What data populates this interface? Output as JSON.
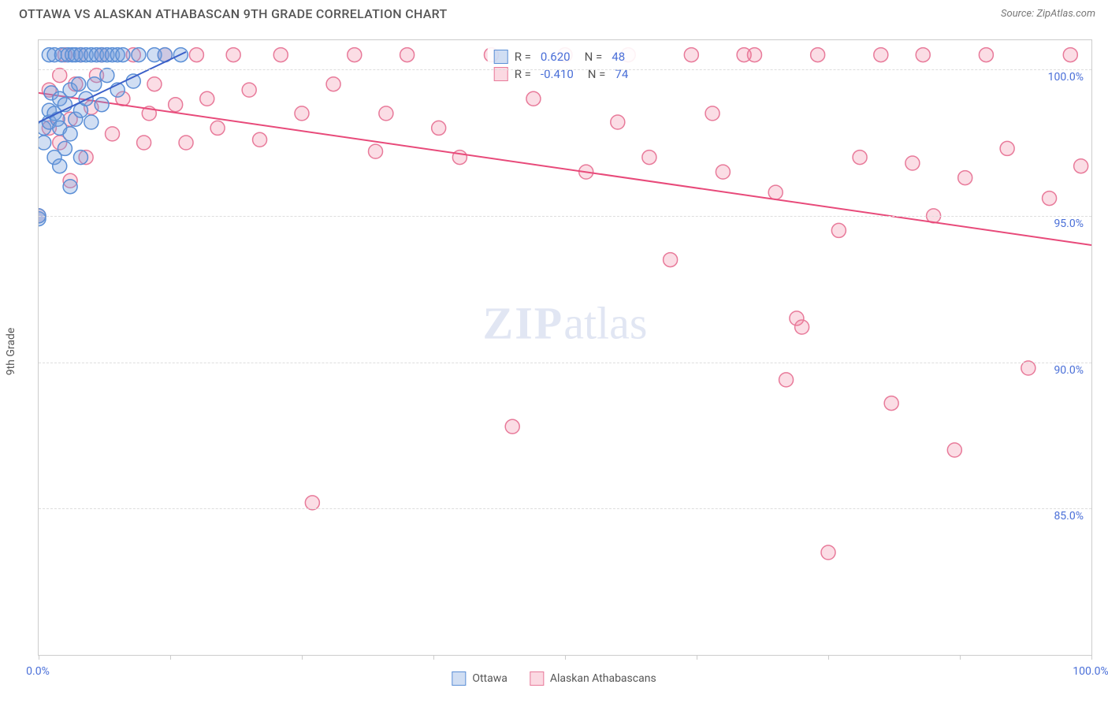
{
  "header": {
    "title": "OTTAWA VS ALASKAN ATHABASCAN 9TH GRADE CORRELATION CHART",
    "source_prefix": "Source: ",
    "source_name": "ZipAtlas.com"
  },
  "chart": {
    "type": "scatter",
    "y_axis_label": "9th Grade",
    "x_range": [
      0,
      100
    ],
    "y_range": [
      80,
      101
    ],
    "x_ticks": [
      0,
      12.5,
      25,
      37.5,
      50,
      62.5,
      75,
      87.5,
      100
    ],
    "x_tick_labels_shown": {
      "0": "0.0%",
      "100": "100.0%"
    },
    "y_gridlines": [
      85,
      90,
      95,
      100
    ],
    "y_tick_labels": {
      "85": "85.0%",
      "90": "90.0%",
      "95": "95.0%",
      "100": "100.0%"
    },
    "background_color": "#ffffff",
    "grid_color": "#dddddd",
    "border_color": "#cccccc",
    "marker_radius": 9,
    "marker_stroke_width": 1.5,
    "trend_line_width": 2,
    "series": {
      "ottawa": {
        "label": "Ottawa",
        "fill": "rgba(120,160,220,0.35)",
        "stroke": "#5b8fd6",
        "swatch_fill": "rgba(120,160,220,0.35)",
        "swatch_border": "#5b8fd6",
        "R": "0.620",
        "N": "48",
        "trend_color": "#3a5fc8",
        "trend": {
          "x1": 0,
          "y1": 98.2,
          "x2": 14,
          "y2": 100.6
        },
        "points": [
          {
            "x": 0,
            "y": 94.9
          },
          {
            "x": 0,
            "y": 95.0
          },
          {
            "x": 0.5,
            "y": 97.5
          },
          {
            "x": 0.5,
            "y": 98.0
          },
          {
            "x": 1,
            "y": 98.2
          },
          {
            "x": 1,
            "y": 98.6
          },
          {
            "x": 1,
            "y": 100.5
          },
          {
            "x": 1.2,
            "y": 99.2
          },
          {
            "x": 1.5,
            "y": 97.0
          },
          {
            "x": 1.5,
            "y": 98.5
          },
          {
            "x": 1.5,
            "y": 100.5
          },
          {
            "x": 1.8,
            "y": 98.3
          },
          {
            "x": 2,
            "y": 96.7
          },
          {
            "x": 2,
            "y": 98.0
          },
          {
            "x": 2,
            "y": 99.0
          },
          {
            "x": 2.2,
            "y": 100.5
          },
          {
            "x": 2.5,
            "y": 97.3
          },
          {
            "x": 2.5,
            "y": 98.8
          },
          {
            "x": 2.8,
            "y": 100.5
          },
          {
            "x": 3,
            "y": 96.0
          },
          {
            "x": 3,
            "y": 97.8
          },
          {
            "x": 3,
            "y": 99.3
          },
          {
            "x": 3.2,
            "y": 100.5
          },
          {
            "x": 3.5,
            "y": 98.3
          },
          {
            "x": 3.5,
            "y": 100.5
          },
          {
            "x": 3.8,
            "y": 99.5
          },
          {
            "x": 4,
            "y": 97.0
          },
          {
            "x": 4,
            "y": 98.6
          },
          {
            "x": 4,
            "y": 100.5
          },
          {
            "x": 4.5,
            "y": 99.0
          },
          {
            "x": 4.5,
            "y": 100.5
          },
          {
            "x": 5,
            "y": 98.2
          },
          {
            "x": 5,
            "y": 100.5
          },
          {
            "x": 5.3,
            "y": 99.5
          },
          {
            "x": 5.5,
            "y": 100.5
          },
          {
            "x": 6,
            "y": 98.8
          },
          {
            "x": 6,
            "y": 100.5
          },
          {
            "x": 6.5,
            "y": 99.8
          },
          {
            "x": 6.5,
            "y": 100.5
          },
          {
            "x": 7,
            "y": 100.5
          },
          {
            "x": 7.5,
            "y": 99.3
          },
          {
            "x": 7.5,
            "y": 100.5
          },
          {
            "x": 8,
            "y": 100.5
          },
          {
            "x": 9,
            "y": 99.6
          },
          {
            "x": 9.5,
            "y": 100.5
          },
          {
            "x": 11,
            "y": 100.5
          },
          {
            "x": 12,
            "y": 100.5
          },
          {
            "x": 13.5,
            "y": 100.5
          }
        ]
      },
      "athabascan": {
        "label": "Alaskan Athabascans",
        "fill": "rgba(240,120,150,0.25)",
        "stroke": "#e87a9a",
        "swatch_fill": "rgba(240,120,150,0.28)",
        "swatch_border": "#e87a9a",
        "R": "-0.410",
        "N": "74",
        "trend_color": "#e84a7a",
        "trend": {
          "x1": 0,
          "y1": 99.2,
          "x2": 100,
          "y2": 94.0
        },
        "points": [
          {
            "x": 0,
            "y": 95.0
          },
          {
            "x": 1,
            "y": 98.0
          },
          {
            "x": 1,
            "y": 99.3
          },
          {
            "x": 2,
            "y": 97.5
          },
          {
            "x": 2,
            "y": 99.8
          },
          {
            "x": 2.5,
            "y": 100.5
          },
          {
            "x": 3,
            "y": 96.2
          },
          {
            "x": 3,
            "y": 98.3
          },
          {
            "x": 3.5,
            "y": 99.5
          },
          {
            "x": 4,
            "y": 100.5
          },
          {
            "x": 4.5,
            "y": 97.0
          },
          {
            "x": 5,
            "y": 98.7
          },
          {
            "x": 5.5,
            "y": 99.8
          },
          {
            "x": 6,
            "y": 100.5
          },
          {
            "x": 7,
            "y": 97.8
          },
          {
            "x": 8,
            "y": 99.0
          },
          {
            "x": 9,
            "y": 100.5
          },
          {
            "x": 10,
            "y": 97.5
          },
          {
            "x": 10.5,
            "y": 98.5
          },
          {
            "x": 11,
            "y": 99.5
          },
          {
            "x": 12,
            "y": 100.5
          },
          {
            "x": 13,
            "y": 98.8
          },
          {
            "x": 14,
            "y": 97.5
          },
          {
            "x": 15,
            "y": 100.5
          },
          {
            "x": 16,
            "y": 99.0
          },
          {
            "x": 17,
            "y": 98.0
          },
          {
            "x": 18.5,
            "y": 100.5
          },
          {
            "x": 20,
            "y": 99.3
          },
          {
            "x": 21,
            "y": 97.6
          },
          {
            "x": 23,
            "y": 100.5
          },
          {
            "x": 25,
            "y": 98.5
          },
          {
            "x": 26,
            "y": 85.2
          },
          {
            "x": 28,
            "y": 99.5
          },
          {
            "x": 30,
            "y": 100.5
          },
          {
            "x": 32,
            "y": 97.2
          },
          {
            "x": 33,
            "y": 98.5
          },
          {
            "x": 35,
            "y": 100.5
          },
          {
            "x": 38,
            "y": 98.0
          },
          {
            "x": 40,
            "y": 97.0
          },
          {
            "x": 43,
            "y": 100.5
          },
          {
            "x": 45,
            "y": 87.8
          },
          {
            "x": 47,
            "y": 99.0
          },
          {
            "x": 50,
            "y": 100.5
          },
          {
            "x": 52,
            "y": 96.5
          },
          {
            "x": 55,
            "y": 98.2
          },
          {
            "x": 56,
            "y": 100.5
          },
          {
            "x": 58,
            "y": 97.0
          },
          {
            "x": 60,
            "y": 93.5
          },
          {
            "x": 62,
            "y": 100.5
          },
          {
            "x": 64,
            "y": 98.5
          },
          {
            "x": 65,
            "y": 96.5
          },
          {
            "x": 67,
            "y": 100.5
          },
          {
            "x": 68,
            "y": 100.5
          },
          {
            "x": 70,
            "y": 95.8
          },
          {
            "x": 71,
            "y": 89.4
          },
          {
            "x": 72,
            "y": 91.5
          },
          {
            "x": 72.5,
            "y": 91.2
          },
          {
            "x": 74,
            "y": 100.5
          },
          {
            "x": 75,
            "y": 83.5
          },
          {
            "x": 76,
            "y": 94.5
          },
          {
            "x": 78,
            "y": 97.0
          },
          {
            "x": 80,
            "y": 100.5
          },
          {
            "x": 81,
            "y": 88.6
          },
          {
            "x": 83,
            "y": 96.8
          },
          {
            "x": 84,
            "y": 100.5
          },
          {
            "x": 85,
            "y": 95.0
          },
          {
            "x": 87,
            "y": 87.0
          },
          {
            "x": 88,
            "y": 96.3
          },
          {
            "x": 90,
            "y": 100.5
          },
          {
            "x": 92,
            "y": 97.3
          },
          {
            "x": 94,
            "y": 89.8
          },
          {
            "x": 96,
            "y": 95.6
          },
          {
            "x": 98,
            "y": 100.5
          },
          {
            "x": 99,
            "y": 96.7
          }
        ]
      }
    }
  },
  "legend_box": {
    "R_label": "R =",
    "N_label": "N ="
  },
  "watermark": {
    "zip": "ZIP",
    "rest": "atlas"
  }
}
